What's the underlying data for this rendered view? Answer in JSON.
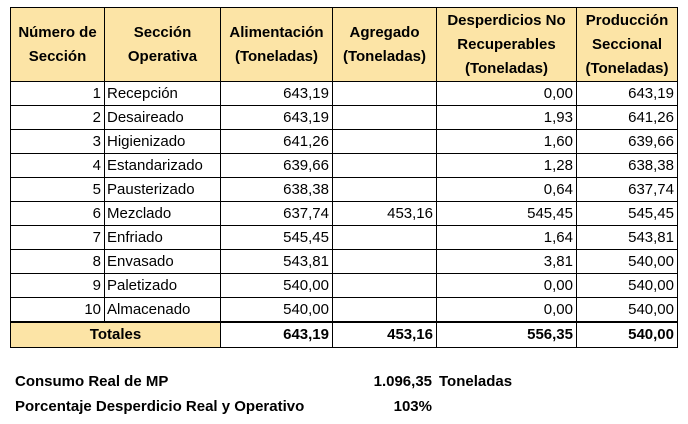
{
  "table": {
    "headers": [
      "Número de Sección",
      "Sección Operativa",
      "Alimentación (Toneladas)",
      "Agregado (Toneladas)",
      "Desperdicios No Recuperables (Toneladas)",
      "Producción Seccional (Toneladas)"
    ],
    "rows": [
      {
        "num": "1",
        "name": "Recepción",
        "alim": "643,19",
        "agreg": "",
        "desp": "0,00",
        "prod": "643,19"
      },
      {
        "num": "2",
        "name": "Desaireado",
        "alim": "643,19",
        "agreg": "",
        "desp": "1,93",
        "prod": "641,26"
      },
      {
        "num": "3",
        "name": "Higienizado",
        "alim": "641,26",
        "agreg": "",
        "desp": "1,60",
        "prod": "639,66"
      },
      {
        "num": "4",
        "name": "Estandarizado",
        "alim": "639,66",
        "agreg": "",
        "desp": "1,28",
        "prod": "638,38"
      },
      {
        "num": "5",
        "name": "Pausterizado",
        "alim": "638,38",
        "agreg": "",
        "desp": "0,64",
        "prod": "637,74"
      },
      {
        "num": "6",
        "name": "Mezclado",
        "alim": "637,74",
        "agreg": "453,16",
        "desp": "545,45",
        "prod": "545,45"
      },
      {
        "num": "7",
        "name": "Enfriado",
        "alim": "545,45",
        "agreg": "",
        "desp": "1,64",
        "prod": "543,81"
      },
      {
        "num": "8",
        "name": "Envasado",
        "alim": "543,81",
        "agreg": "",
        "desp": "3,81",
        "prod": "540,00"
      },
      {
        "num": "9",
        "name": "Paletizado",
        "alim": "540,00",
        "agreg": "",
        "desp": "0,00",
        "prod": "540,00"
      },
      {
        "num": "10",
        "name": "Almacenado",
        "alim": "540,00",
        "agreg": "",
        "desp": "0,00",
        "prod": "540,00"
      }
    ],
    "totals": {
      "label": "Totales",
      "alim": "643,19",
      "agreg": "453,16",
      "desp": "556,35",
      "prod": "540,00"
    }
  },
  "summary": {
    "consumo_label": "Consumo Real de MP",
    "consumo_value": "1.096,35",
    "consumo_unit": "Toneladas",
    "porcentaje_label": "Porcentaje Desperdicio Real y Operativo",
    "porcentaje_value": "103%"
  },
  "colors": {
    "header_bg": "#fce4a6"
  }
}
